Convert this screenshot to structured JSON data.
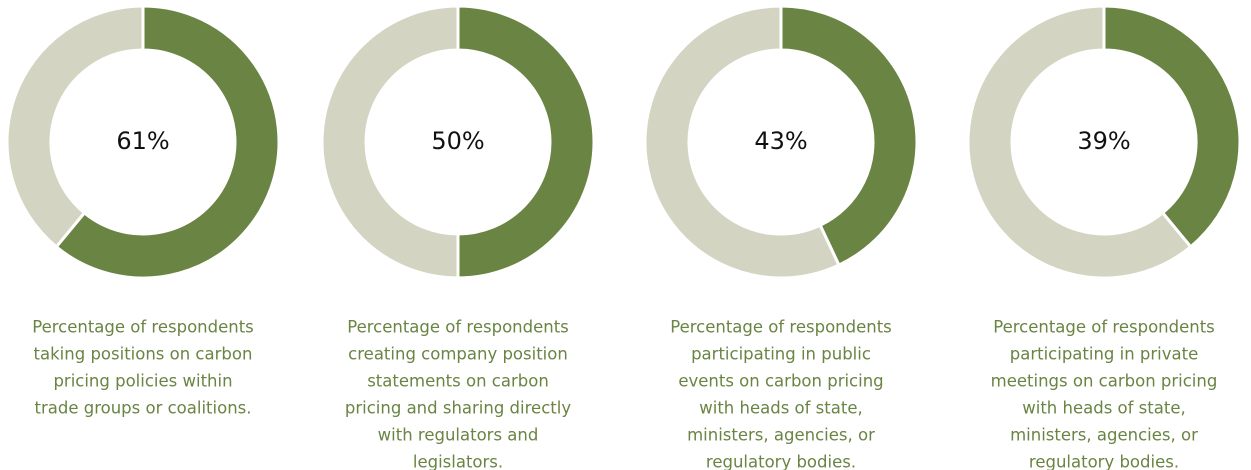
{
  "chart_data": [
    {
      "type": "donut",
      "values": [
        61,
        39
      ],
      "value_labels": [
        "61%"
      ],
      "colors": [
        "#6a8443",
        "#d3d4c1"
      ],
      "caption": [
        "Percentage of respondents",
        "taking positions on carbon",
        "pricing policies within",
        "trade groups or coalitions."
      ]
    },
    {
      "type": "donut",
      "values": [
        50,
        50
      ],
      "value_labels": [
        "50%"
      ],
      "colors": [
        "#6a8443",
        "#d3d4c1"
      ],
      "caption": [
        "Percentage of respondents",
        "creating company position",
        "statements on carbon",
        "pricing and sharing directly",
        "with regulators and",
        "legislators."
      ]
    },
    {
      "type": "donut",
      "values": [
        43,
        57
      ],
      "value_labels": [
        "43%"
      ],
      "colors": [
        "#6a8443",
        "#d3d4c1"
      ],
      "caption": [
        "Percentage of respondents",
        "participating in public",
        "events on carbon pricing",
        "with heads of state,",
        "ministers, agencies, or",
        "regulatory bodies."
      ]
    },
    {
      "type": "donut",
      "values": [
        39,
        61
      ],
      "value_labels": [
        "39%"
      ],
      "colors": [
        "#6a8443",
        "#d3d4c1"
      ],
      "caption": [
        "Percentage of respondents",
        "participating in private",
        "meetings on carbon pricing",
        "with heads of state,",
        "ministers, agencies, or",
        "regulatory bodies."
      ]
    }
  ]
}
